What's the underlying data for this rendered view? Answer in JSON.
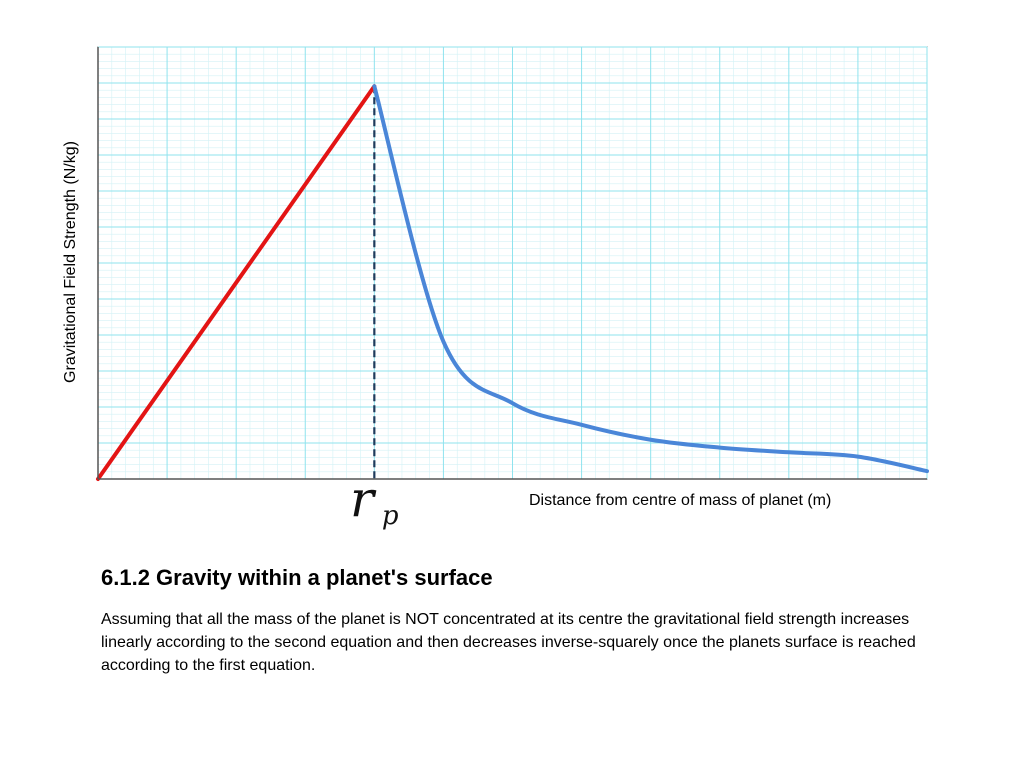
{
  "chart_data": {
    "type": "line",
    "title": "",
    "xlabel": "Distance from centre of mass of planet (m)",
    "ylabel": "Gravitational Field Strength (N/kg)",
    "marker_label": {
      "main": "r",
      "subscript": "p"
    },
    "grid": true,
    "series": [
      {
        "color": "#e31414",
        "points": [
          [
            0,
            0
          ],
          [
            1,
            1
          ]
        ]
      },
      {
        "color": "#4a86d8",
        "points": [
          [
            1.0,
            1.0
          ],
          [
            1.25,
            0.35
          ],
          [
            1.5,
            0.193
          ],
          [
            1.75,
            0.138
          ],
          [
            2.0,
            0.1
          ],
          [
            2.25,
            0.08
          ],
          [
            2.5,
            0.068
          ],
          [
            2.75,
            0.057
          ],
          [
            3.0,
            0.02
          ]
        ]
      }
    ],
    "reference_line": {
      "x": 1,
      "style": "dashed",
      "color": "#1f3b5c"
    },
    "xlim": [
      0,
      3.0
    ],
    "ylim": [
      0,
      1.1
    ]
  },
  "section": {
    "heading": "6.1.2 Gravity within a planet's surface",
    "body": "Assuming that all the mass of the planet is NOT concentrated at its centre the gravitational field strength increases linearly according to the second equation and then decreases inverse-squarely once the planets surface is reached according to the first equation."
  },
  "colors": {
    "grid_major": "#8fe3ee",
    "grid_minor": "#d3f2f6",
    "axis": "#555555"
  }
}
